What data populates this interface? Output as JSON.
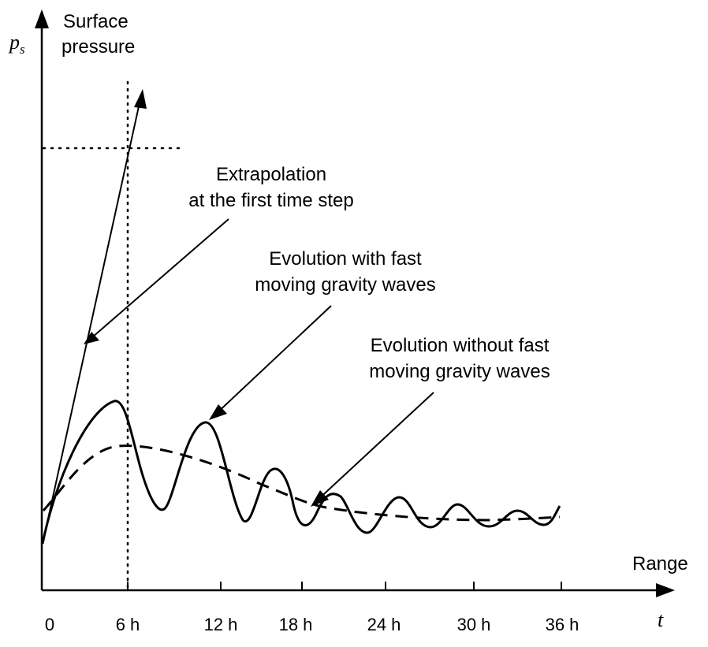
{
  "y_axis": {
    "symbol": "p",
    "subscript": "s",
    "title_line1": "Surface",
    "title_line2": "pressure"
  },
  "x_axis": {
    "symbol": "t",
    "title": "Range",
    "ticks": [
      "0",
      "6 h",
      "12 h",
      "18 h",
      "24 h",
      "30 h",
      "36 h"
    ]
  },
  "annotations": {
    "extrapolation": [
      "Extrapolation",
      "at the first time step"
    ],
    "fast_waves": [
      "Evolution with fast",
      "moving gravity waves"
    ],
    "no_fast_waves": [
      "Evolution without fast",
      "moving gravity waves"
    ]
  },
  "chart_data": {
    "type": "line",
    "x": [
      "0",
      "6 h",
      "12 h",
      "18 h",
      "24 h",
      "30 h",
      "36 h"
    ],
    "series": [
      {
        "style": "solid",
        "description": "extrapolation line, steep rise"
      },
      {
        "style": "solid",
        "description": "oscillating evolution damped toward steady value"
      },
      {
        "style": "dashed",
        "description": "smooth evolution rising then relaxing"
      }
    ],
    "reference_lines": [
      {
        "orientation": "vertical",
        "at": "6 h",
        "style": "dotted"
      },
      {
        "orientation": "horizontal",
        "style": "dotted"
      }
    ]
  }
}
